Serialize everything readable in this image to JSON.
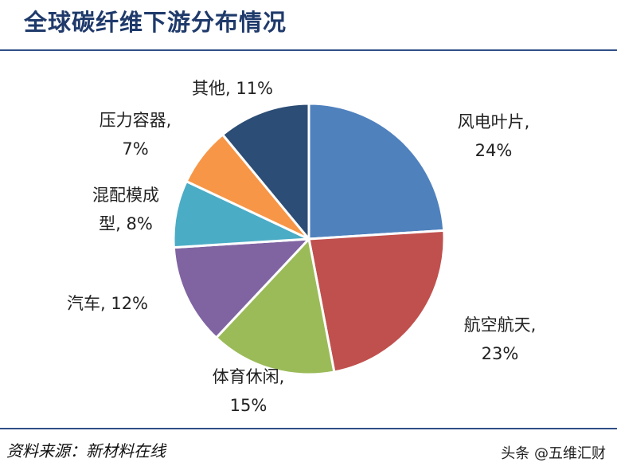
{
  "page": {
    "title": "全球碳纤维下游分布情况",
    "source": "资料来源：新材料在线",
    "watermark": "头条 @五维汇财"
  },
  "chart_data": {
    "type": "pie",
    "title": "全球碳纤维下游分布情况",
    "start_angle_deg": 0,
    "direction": "clockwise",
    "slices": [
      {
        "label": "风电叶片",
        "value": 24,
        "display": [
          "风电叶片,",
          "24%"
        ],
        "color": "#4f81bd"
      },
      {
        "label": "航空航天",
        "value": 23,
        "display": [
          "航空航天,",
          "23%"
        ],
        "color": "#c0504d"
      },
      {
        "label": "体育休闲",
        "value": 15,
        "display": [
          "体育休闲,",
          "15%"
        ],
        "color": "#9bbb59"
      },
      {
        "label": "汽车",
        "value": 12,
        "display": [
          "汽车, 12%"
        ],
        "color": "#8064a2"
      },
      {
        "label": "混配模成型",
        "value": 8,
        "display": [
          "混配模成",
          "型, 8%"
        ],
        "color": "#4bacc6"
      },
      {
        "label": "压力容器",
        "value": 7,
        "display": [
          "压力容器,",
          "7%"
        ],
        "color": "#f79646"
      },
      {
        "label": "其他",
        "value": 11,
        "display": [
          "其他, 11%"
        ],
        "color": "#2c4d75"
      }
    ]
  }
}
